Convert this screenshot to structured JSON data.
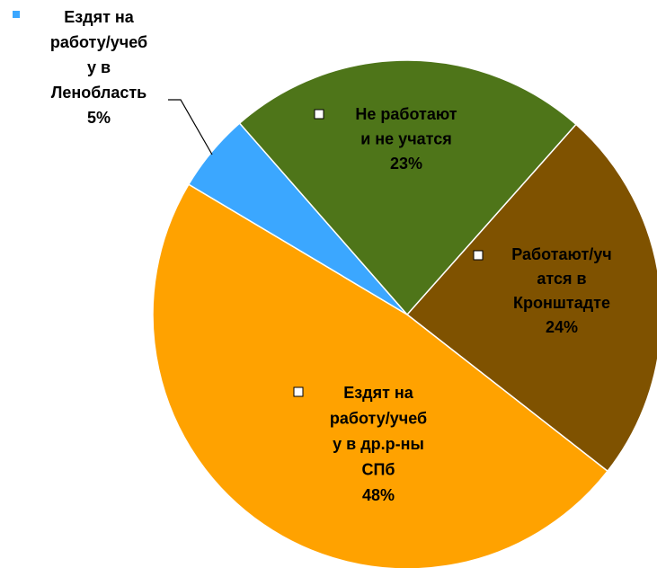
{
  "chart_data": {
    "type": "pie",
    "categories": [
      "Работают/уч\nатся в\nКронштадте",
      "Ездят на\nработу/учеб\nу в др.р-ны\nСПб",
      "Ездят на\nработу/учеб\nу в\nЛенобласть",
      "Не работают\nи не учатся"
    ],
    "values": [
      24,
      48,
      5,
      23
    ],
    "value_labels": [
      "24%",
      "48%",
      "5%",
      "23%"
    ],
    "colors": [
      "#7f5200",
      "#ffa200",
      "#3ba7ff",
      "#4e7519"
    ]
  }
}
